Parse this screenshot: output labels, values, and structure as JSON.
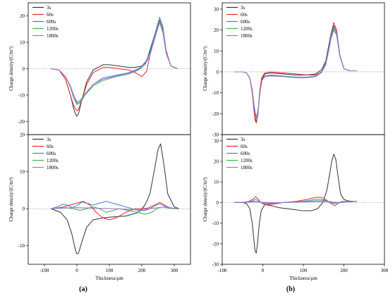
{
  "figure_labels": [
    "(a)",
    "(b)"
  ],
  "colors": {
    "3s": "#333333",
    "60s": "#e8262a",
    "600s": "#3d7fd6",
    "1200s": "#3fb04e",
    "1800s": "#a56fd6",
    "axis": "#000000",
    "zero_line": "#888888"
  },
  "chart_data": [
    {
      "id": "a-top",
      "type": "line",
      "xlabel": "",
      "ylabel": "Charge density/(C/m³)",
      "xlim": [
        -150,
        350
      ],
      "ylim": [
        -25,
        25
      ],
      "xticks": [],
      "yticks": [
        -20,
        -10,
        0,
        10,
        20
      ],
      "legend": "top-left",
      "grid": false,
      "series": [
        {
          "name": "3s",
          "x": [
            -80,
            -55,
            -35,
            -20,
            -10,
            -5,
            0,
            5,
            15,
            30,
            50,
            80,
            100,
            130,
            160,
            180,
            200,
            215,
            230,
            245,
            255,
            265,
            275,
            290,
            310
          ],
          "y": [
            0,
            -0.5,
            -4,
            -10,
            -15,
            -17,
            -18,
            -17,
            -12,
            -5,
            -0.5,
            1.5,
            1.5,
            1,
            0.5,
            0.5,
            1,
            3,
            9,
            15,
            17.5,
            14,
            6,
            1,
            0
          ]
        },
        {
          "name": "60s",
          "x": [
            -80,
            -55,
            -35,
            -20,
            -10,
            0,
            5,
            15,
            30,
            50,
            80,
            100,
            130,
            160,
            180,
            200,
            215,
            230,
            245,
            255,
            265,
            275,
            290,
            310
          ],
          "y": [
            0,
            -0.5,
            -4,
            -10,
            -14,
            -16,
            -15.5,
            -12,
            -6,
            -1.5,
            0.5,
            0.5,
            0,
            -0.5,
            -1.5,
            -3,
            -1,
            8,
            15,
            18.5,
            15,
            6,
            1,
            0
          ]
        },
        {
          "name": "600s",
          "x": [
            -80,
            -55,
            -35,
            -20,
            -10,
            0,
            10,
            25,
            50,
            80,
            120,
            160,
            190,
            210,
            225,
            240,
            255,
            265,
            275,
            290,
            310
          ],
          "y": [
            0,
            -0.5,
            -3,
            -7,
            -11,
            -13.5,
            -13,
            -10,
            -6,
            -3.5,
            -2.5,
            -1.5,
            0,
            2,
            6,
            13,
            19.5,
            16,
            7,
            1,
            0
          ]
        },
        {
          "name": "1200s",
          "x": [
            -80,
            -55,
            -35,
            -20,
            -10,
            0,
            10,
            25,
            50,
            80,
            120,
            160,
            190,
            210,
            225,
            240,
            255,
            265,
            275,
            290,
            310
          ],
          "y": [
            0,
            -0.5,
            -3,
            -7,
            -10,
            -13,
            -12.5,
            -10,
            -6.5,
            -4.5,
            -3,
            -2,
            -0.5,
            1.5,
            5,
            12,
            18,
            15,
            6.5,
            1,
            0
          ]
        },
        {
          "name": "1800s",
          "x": [
            -80,
            -55,
            -35,
            -20,
            -10,
            0,
            10,
            25,
            50,
            80,
            120,
            160,
            190,
            210,
            225,
            240,
            255,
            265,
            275,
            290,
            310
          ],
          "y": [
            0,
            -0.5,
            -3,
            -6.5,
            -10,
            -12.5,
            -12,
            -9.5,
            -6,
            -4,
            -2.8,
            -1.8,
            -0.3,
            1.5,
            5,
            11.5,
            17.5,
            14.5,
            6.5,
            1,
            0
          ]
        }
      ]
    },
    {
      "id": "a-bottom",
      "type": "line",
      "xlabel": "Thickness/μm",
      "ylabel": "Charge density/(C/m³)",
      "xlim": [
        -150,
        350
      ],
      "ylim": [
        -15,
        20
      ],
      "xticks": [
        -100,
        0,
        100,
        200,
        300
      ],
      "yticks": [
        -10,
        0,
        10,
        20
      ],
      "legend": "top-left",
      "grid": false,
      "series": [
        {
          "name": "3s",
          "x": [
            -80,
            -50,
            -30,
            -15,
            -5,
            0,
            5,
            15,
            30,
            50,
            80,
            110,
            150,
            190,
            210,
            225,
            240,
            250,
            258,
            268,
            280,
            300,
            315
          ],
          "y": [
            0,
            -1,
            -3,
            -7,
            -11,
            -12.2,
            -12,
            -9,
            -5,
            -3,
            -2.5,
            -2.2,
            -2,
            -1,
            1,
            4,
            11,
            16,
            17.5,
            12,
            4,
            0.5,
            0
          ]
        },
        {
          "name": "60s",
          "x": [
            -80,
            -60,
            -40,
            -20,
            0,
            20,
            40,
            60,
            80,
            100,
            120,
            150,
            180,
            200,
            220,
            240,
            255,
            270,
            285,
            300,
            315
          ],
          "y": [
            0,
            0.2,
            0.5,
            1,
            1.5,
            2,
            1,
            -1,
            -2.5,
            -3,
            -2.5,
            -1,
            0,
            0,
            0.2,
            1,
            1.7,
            1,
            0.2,
            0,
            0
          ]
        },
        {
          "name": "600s",
          "x": [
            -80,
            -60,
            -45,
            -30,
            -15,
            0,
            15,
            30,
            50,
            70,
            90,
            110,
            130,
            150,
            170,
            190,
            210,
            225,
            240,
            255,
            270,
            290,
            315
          ],
          "y": [
            0,
            0.5,
            1.2,
            1,
            0.3,
            0.8,
            1.8,
            1.5,
            1,
            1.5,
            2,
            1.5,
            1,
            0.5,
            0,
            -0.5,
            -0.5,
            0,
            0.8,
            1.3,
            0.8,
            0.2,
            0
          ]
        },
        {
          "name": "1200s",
          "x": [
            -80,
            -50,
            -30,
            -10,
            10,
            30,
            50,
            70,
            90,
            110,
            130,
            160,
            190,
            210,
            230,
            250,
            265,
            280,
            300,
            315
          ],
          "y": [
            0,
            0.2,
            0.3,
            0,
            -0.5,
            0,
            0.5,
            0,
            -1,
            -0.5,
            0,
            -0.5,
            -1,
            -1.5,
            -1,
            0.2,
            0.5,
            0.2,
            0,
            0
          ]
        },
        {
          "name": "1800s",
          "x": [
            -80,
            -40,
            0,
            40,
            80,
            120,
            160,
            200,
            240,
            270,
            300,
            315
          ],
          "y": [
            0,
            0.2,
            0.3,
            0.2,
            0.1,
            0,
            -0.2,
            -0.3,
            0.2,
            0.5,
            0.1,
            0
          ]
        }
      ]
    },
    {
      "id": "b-top",
      "type": "line",
      "xlabel": "",
      "ylabel": "Charge density/(C/m³)",
      "xlim": [
        -100,
        300
      ],
      "ylim": [
        -30,
        33
      ],
      "xticks": [],
      "yticks": [
        -30,
        -20,
        -10,
        0,
        10,
        20,
        30
      ],
      "legend": "top-left",
      "grid": false,
      "series": [
        {
          "name": "3s",
          "x": [
            -70,
            -50,
            -40,
            -32,
            -26,
            -22,
            -19,
            -16,
            -12,
            -8,
            -3,
            5,
            20,
            50,
            80,
            110,
            130,
            145,
            155,
            162,
            168,
            175,
            182,
            190,
            200,
            215,
            232
          ],
          "y": [
            0,
            0,
            -0.5,
            -3,
            -9,
            -17,
            -22,
            -24,
            -20,
            -11,
            -4,
            -1,
            -0.5,
            -1,
            -1.5,
            -1.5,
            -1,
            1,
            5,
            12,
            18,
            22,
            19,
            8,
            1.5,
            0.5,
            0.5
          ]
        },
        {
          "name": "60s",
          "x": [
            -70,
            -50,
            -40,
            -32,
            -26,
            -22,
            -19,
            -16,
            -12,
            -8,
            -3,
            5,
            20,
            50,
            80,
            110,
            130,
            145,
            155,
            162,
            168,
            175,
            182,
            190,
            200,
            215,
            232
          ],
          "y": [
            0,
            0,
            -0.5,
            -3,
            -10,
            -18,
            -23,
            -24.5,
            -20,
            -10,
            -3,
            -0.5,
            0,
            -0.5,
            -1,
            -1.5,
            -1.5,
            0,
            4,
            11,
            18,
            23.5,
            20,
            8,
            1.5,
            0.5,
            0.5
          ]
        },
        {
          "name": "600s",
          "x": [
            -70,
            -50,
            -40,
            -32,
            -26,
            -22,
            -18,
            -15,
            -11,
            -7,
            -2,
            5,
            20,
            50,
            80,
            110,
            130,
            145,
            155,
            162,
            168,
            175,
            182,
            190,
            200,
            215,
            232
          ],
          "y": [
            0,
            0,
            -0.5,
            -3,
            -9,
            -16,
            -21,
            -22.5,
            -18,
            -10,
            -4,
            -2,
            -1.5,
            -2,
            -2.5,
            -2.5,
            -2,
            0,
            4,
            11,
            17,
            21.5,
            19,
            8,
            1.5,
            0.5,
            0.5
          ]
        },
        {
          "name": "1200s",
          "x": [
            -70,
            -50,
            -40,
            -32,
            -26,
            -22,
            -18,
            -15,
            -11,
            -7,
            -2,
            5,
            20,
            50,
            80,
            110,
            130,
            145,
            155,
            162,
            168,
            175,
            182,
            190,
            200,
            215,
            232
          ],
          "y": [
            0,
            0,
            -0.5,
            -3,
            -8.5,
            -15.5,
            -20.5,
            -22,
            -17.5,
            -10,
            -4,
            -2.2,
            -1.8,
            -2.2,
            -2.7,
            -2.7,
            -2.2,
            -0.2,
            3.5,
            10,
            16,
            20.5,
            18,
            7.5,
            1.5,
            0.5,
            0.5
          ]
        },
        {
          "name": "1800s",
          "x": [
            -70,
            -50,
            -40,
            -32,
            -26,
            -22,
            -18,
            -15,
            -11,
            -7,
            -2,
            5,
            20,
            50,
            80,
            110,
            130,
            145,
            155,
            162,
            168,
            175,
            182,
            190,
            200,
            215,
            232
          ],
          "y": [
            0,
            0,
            -0.5,
            -3,
            -8.5,
            -15,
            -20,
            -21.5,
            -17,
            -10,
            -4,
            -2.3,
            -2,
            -2.3,
            -2.8,
            -2.8,
            -2.3,
            -0.3,
            3.3,
            9.5,
            15.5,
            20,
            17.5,
            7.5,
            1.5,
            0.5,
            0.5
          ]
        }
      ]
    },
    {
      "id": "b-bottom",
      "type": "line",
      "xlabel": "Thickness/μm",
      "ylabel": "Charge density/(C/m³)",
      "xlim": [
        -100,
        300
      ],
      "ylim": [
        -30,
        33
      ],
      "xticks": [
        -100,
        0,
        100,
        200,
        300
      ],
      "yticks": [
        -30,
        -20,
        -10,
        0,
        10,
        20,
        30
      ],
      "legend": "top-left",
      "grid": false,
      "series": [
        {
          "name": "3s",
          "x": [
            -70,
            -50,
            -40,
            -32,
            -26,
            -22,
            -19,
            -16,
            -13,
            -9,
            -4,
            5,
            20,
            40,
            60,
            80,
            100,
            120,
            135,
            148,
            158,
            165,
            170,
            175,
            180,
            186,
            192,
            200,
            210,
            225,
            232
          ],
          "y": [
            0,
            0,
            -0.5,
            -3,
            -10,
            -18,
            -23.5,
            -24.5,
            -20,
            -11,
            -4,
            -1,
            -1.5,
            -2.5,
            -3,
            -3.5,
            -4,
            -4,
            -3,
            0,
            6,
            14,
            20,
            23.5,
            21,
            12,
            4,
            1.5,
            0.8,
            0.5,
            0.5
          ]
        },
        {
          "name": "60s",
          "x": [
            -70,
            -50,
            -35,
            -25,
            -18,
            -12,
            -5,
            5,
            20,
            50,
            80,
            110,
            130,
            145,
            155,
            165,
            172,
            178,
            185,
            195,
            210,
            232
          ],
          "y": [
            0,
            0,
            0.5,
            1.5,
            2.8,
            1.8,
            0,
            -1,
            -1,
            0,
            0.5,
            1.5,
            2.5,
            2.5,
            1.5,
            0,
            -1,
            -1.5,
            -0.5,
            0.5,
            0.5,
            0.5
          ]
        },
        {
          "name": "600s",
          "x": [
            -70,
            -50,
            -35,
            -25,
            -18,
            -12,
            -5,
            5,
            20,
            50,
            80,
            110,
            130,
            145,
            155,
            165,
            172,
            178,
            185,
            195,
            210,
            232
          ],
          "y": [
            0,
            0,
            0.3,
            0.8,
            1.5,
            1,
            0,
            -0.5,
            -0.5,
            0,
            0.3,
            0.8,
            1.5,
            1.5,
            1,
            0.3,
            -0.3,
            -0.5,
            0,
            0.3,
            0.5,
            0.5
          ]
        },
        {
          "name": "1200s",
          "x": [
            -70,
            -40,
            -20,
            -10,
            0,
            20,
            50,
            80,
            110,
            130,
            150,
            165,
            175,
            185,
            200,
            232
          ],
          "y": [
            0,
            0.2,
            0.5,
            0.3,
            0,
            -0.3,
            0,
            0.3,
            0.5,
            0.8,
            0.8,
            0.5,
            0,
            -0.3,
            0.2,
            0.5
          ]
        },
        {
          "name": "1800s",
          "x": [
            -70,
            -40,
            -20,
            0,
            30,
            60,
            90,
            120,
            150,
            170,
            190,
            210,
            232
          ],
          "y": [
            0,
            0.1,
            0.3,
            0.1,
            -0.1,
            0,
            0.2,
            0.4,
            0.5,
            0.2,
            0,
            0.3,
            0.5
          ]
        }
      ]
    }
  ]
}
